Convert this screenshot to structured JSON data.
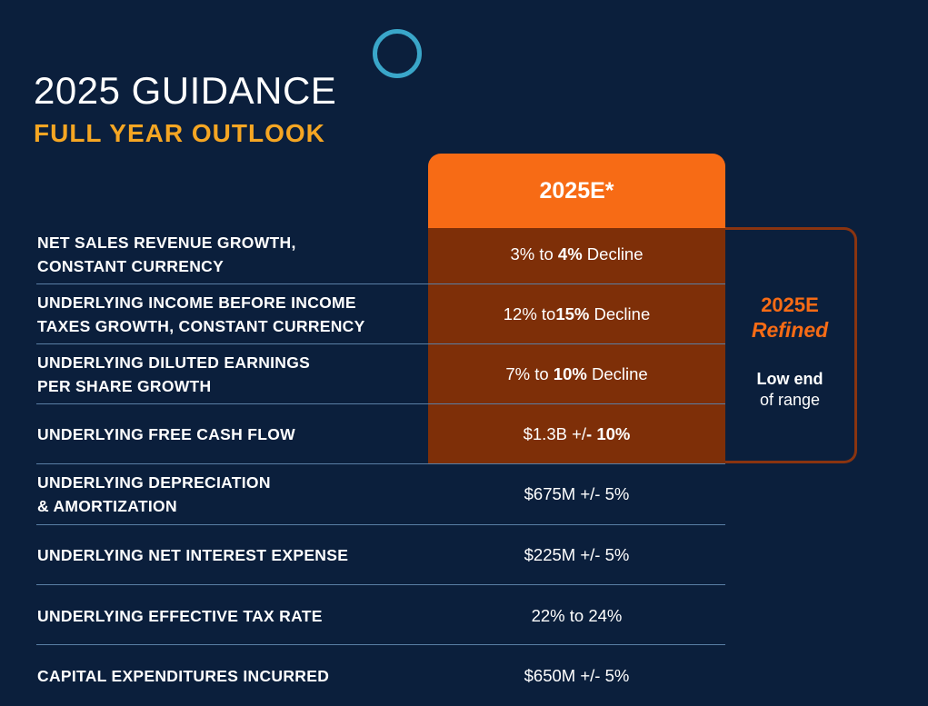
{
  "header": {
    "title": "2025 GUIDANCE",
    "subtitle": "FULL YEAR OUTLOOK"
  },
  "column_header": "2025E*",
  "refined": {
    "title": "2025E",
    "subtitle": "Refined",
    "note_strong": "Low end",
    "note_light": "of range"
  },
  "rows": [
    {
      "label": "NET SALES REVENUE GROWTH,\nCONSTANT CURRENCY",
      "pre": "3% to ",
      "bold": "4%",
      "post": " Decline"
    },
    {
      "label": "UNDERLYING INCOME BEFORE INCOME\nTAXES GROWTH, CONSTANT CURRENCY",
      "pre": "12% to",
      "bold": "15%",
      "post": " Decline"
    },
    {
      "label": "UNDERLYING DILUTED EARNINGS\nPER SHARE GROWTH",
      "pre": "7% to ",
      "bold": "10%",
      "post": " Decline"
    },
    {
      "label": "UNDERLYING FREE CASH FLOW",
      "pre": "$1.3B +/",
      "bold": "- 10%",
      "post": ""
    },
    {
      "label": "UNDERLYING DEPRECIATION\n& AMORTIZATION",
      "pre": "$675M +/- 5%",
      "bold": "",
      "post": ""
    },
    {
      "label": "UNDERLYING NET INTEREST EXPENSE",
      "pre": "$225M +/- 5%",
      "bold": "",
      "post": ""
    },
    {
      "label": "UNDERLYING EFFECTIVE TAX RATE",
      "pre": "22% to 24%",
      "bold": "",
      "post": ""
    },
    {
      "label": "CAPITAL EXPENDITURES INCURRED",
      "pre": "$650M +/- 5%",
      "bold": "",
      "post": ""
    }
  ]
}
